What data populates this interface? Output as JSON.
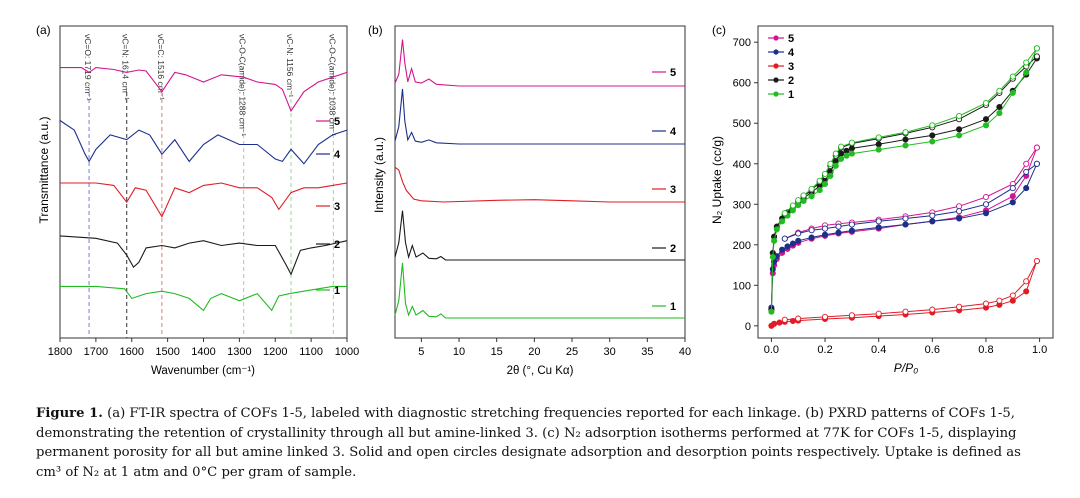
{
  "colors": {
    "c5": "#d4148f",
    "c4": "#1c2f8c",
    "c3": "#e01d27",
    "c2": "#1a1a1a",
    "c1": "#22bb22"
  },
  "panel_a": {
    "label": "(a)",
    "ylabel": "Transmittance (a.u.)",
    "xlabel": "Wavenumber (cm⁻¹)",
    "xticks": [
      "1800",
      "1700",
      "1600",
      "1500",
      "1400",
      "1300",
      "1200",
      "1100",
      "1000"
    ],
    "annotations": [
      {
        "text": "νC=O: 1719 cm⁻¹",
        "color": "#7b7be0"
      },
      {
        "text": "νC=N: 1614 cm⁻¹",
        "color": "#333333"
      },
      {
        "text": "νC=C: 1516 cm⁻¹",
        "color": "#e07a7a"
      },
      {
        "text": "νC-O-C(amide): 1288 cm⁻¹",
        "color": "#9bd89b"
      },
      {
        "text": "νC-N: 1156 cm⁻¹",
        "color": "#9bd89b"
      },
      {
        "text": "νC-O-C(amide): 1038 cm⁻¹",
        "color": "#9bd89b"
      }
    ],
    "legend": [
      "5",
      "4",
      "3",
      "2",
      "1"
    ]
  },
  "panel_b": {
    "label": "(b)",
    "ylabel": "Intensity (a.u.)",
    "xlabel": "2θ (°, Cu Kα)",
    "xticks": [
      "5",
      "10",
      "15",
      "20",
      "25",
      "30",
      "35",
      "40"
    ],
    "legend": [
      "5",
      "4",
      "3",
      "2",
      "1"
    ]
  },
  "panel_c": {
    "label": "(c)",
    "ylabel": "N₂ Uptake (cc/g)",
    "xlabel": "P/P₀",
    "xticks": [
      "0.0",
      "0.2",
      "0.4",
      "0.6",
      "0.8",
      "1.0"
    ],
    "yticks": [
      "0",
      "100",
      "200",
      "300",
      "400",
      "500",
      "600",
      "700"
    ],
    "legend": [
      "5",
      "4",
      "3",
      "2",
      "1"
    ]
  },
  "chart_data": [
    {
      "type": "line",
      "title": "",
      "xlabel": "Wavenumber (cm⁻¹)",
      "ylabel": "Transmittance (a.u.)",
      "xlim": [
        1800,
        1000
      ],
      "grid": false,
      "legend_position": "right",
      "annotations_cm": [
        1719,
        1614,
        1516,
        1288,
        1156,
        1038
      ],
      "series": [
        {
          "name": "5",
          "x": [
            1800,
            1740,
            1719,
            1700,
            1650,
            1614,
            1580,
            1560,
            1516,
            1480,
            1450,
            1400,
            1350,
            1288,
            1250,
            1200,
            1180,
            1156,
            1120,
            1080,
            1040,
            1000
          ],
          "y": [
            5.0,
            5.0,
            4.9,
            5.0,
            4.96,
            4.9,
            4.95,
            4.93,
            4.5,
            4.9,
            4.85,
            4.7,
            4.85,
            4.8,
            4.7,
            4.65,
            4.55,
            4.1,
            4.5,
            4.7,
            4.8,
            4.9
          ]
        },
        {
          "name": "4",
          "x": [
            1800,
            1760,
            1730,
            1719,
            1700,
            1660,
            1614,
            1580,
            1550,
            1516,
            1480,
            1440,
            1400,
            1360,
            1300,
            1250,
            1200,
            1180,
            1156,
            1120,
            1080,
            1040,
            1000
          ],
          "y": [
            3.9,
            3.7,
            3.2,
            3.05,
            3.3,
            3.6,
            3.5,
            3.7,
            3.6,
            3.2,
            3.5,
            3.05,
            3.4,
            3.6,
            3.4,
            3.4,
            3.1,
            3.05,
            3.3,
            3.0,
            3.4,
            3.6,
            3.7
          ]
        },
        {
          "name": "3",
          "x": [
            1800,
            1700,
            1650,
            1614,
            1590,
            1560,
            1516,
            1480,
            1440,
            1400,
            1350,
            1300,
            1250,
            1210,
            1190,
            1156,
            1120,
            1080,
            1040,
            1000
          ],
          "y": [
            2.6,
            2.6,
            2.55,
            2.2,
            2.5,
            2.45,
            1.9,
            2.5,
            2.4,
            2.55,
            2.6,
            2.5,
            2.5,
            2.3,
            2.05,
            2.4,
            2.5,
            2.5,
            2.55,
            2.6
          ]
        },
        {
          "name": "2",
          "x": [
            1800,
            1700,
            1640,
            1614,
            1595,
            1580,
            1560,
            1516,
            1480,
            1440,
            1400,
            1350,
            1300,
            1250,
            1200,
            1170,
            1156,
            1130,
            1100,
            1060,
            1000
          ],
          "y": [
            1.5,
            1.45,
            1.35,
            1.1,
            0.85,
            0.95,
            1.25,
            1.3,
            1.25,
            1.35,
            1.4,
            1.3,
            1.35,
            1.3,
            1.3,
            0.9,
            0.7,
            1.2,
            1.25,
            1.3,
            1.4
          ]
        },
        {
          "name": "1",
          "x": [
            1800,
            1700,
            1620,
            1600,
            1560,
            1516,
            1480,
            1440,
            1400,
            1380,
            1350,
            1300,
            1250,
            1210,
            1190,
            1160,
            1120,
            1080,
            1040,
            1000
          ],
          "y": [
            0.45,
            0.45,
            0.4,
            0.2,
            0.3,
            0.35,
            0.3,
            0.2,
            -0.05,
            0.2,
            0.3,
            0.15,
            0.3,
            -0.05,
            0.25,
            0.3,
            0.35,
            0.4,
            0.45,
            0.45
          ]
        }
      ]
    },
    {
      "type": "line",
      "title": "",
      "xlabel": "2θ (°, Cu Kα)",
      "ylabel": "Intensity (a.u.)",
      "xlim": [
        1.5,
        40
      ],
      "grid": false,
      "legend_position": "right",
      "series": [
        {
          "name": "5",
          "x": [
            1.5,
            2.0,
            2.5,
            2.8,
            3.2,
            3.7,
            4.2,
            5.0,
            6.0,
            7.0,
            10,
            40
          ],
          "y": [
            4.05,
            4.2,
            4.8,
            4.4,
            4.07,
            4.3,
            4.07,
            4.05,
            4.12,
            4.03,
            4.0,
            4.0
          ]
        },
        {
          "name": "4",
          "x": [
            1.5,
            2.0,
            2.5,
            2.8,
            3.2,
            3.7,
            4.2,
            5.0,
            6.0,
            7.0,
            10,
            40
          ],
          "y": [
            3.05,
            3.3,
            3.95,
            3.4,
            3.07,
            3.2,
            3.05,
            3.03,
            3.07,
            3.02,
            3.0,
            3.0
          ]
        },
        {
          "name": "3",
          "x": [
            1.5,
            2.0,
            2.5,
            3.0,
            4.0,
            5.0,
            8,
            15,
            20,
            25,
            30,
            40
          ],
          "y": [
            2.6,
            2.55,
            2.35,
            2.2,
            2.05,
            2.02,
            2.0,
            2.03,
            2.04,
            2.02,
            2.0,
            2.0
          ]
        },
        {
          "name": "2",
          "x": [
            1.5,
            2.0,
            2.5,
            2.9,
            3.3,
            3.8,
            4.3,
            5.2,
            6.0,
            7.0,
            7.6,
            8.2,
            10,
            40
          ],
          "y": [
            1.05,
            1.3,
            1.85,
            1.3,
            1.05,
            1.25,
            1.05,
            1.12,
            1.03,
            1.02,
            1.06,
            1.0,
            1.0,
            1.0
          ]
        },
        {
          "name": "1",
          "x": [
            1.5,
            2.0,
            2.5,
            2.9,
            3.3,
            3.8,
            4.3,
            5.2,
            6.0,
            7.0,
            7.6,
            8.2,
            10,
            40
          ],
          "y": [
            0.05,
            0.3,
            0.95,
            0.25,
            0.05,
            0.2,
            0.05,
            0.13,
            0.03,
            0.02,
            0.07,
            0.0,
            0.0,
            0.0
          ]
        }
      ]
    },
    {
      "type": "scatter",
      "title": "",
      "xlabel": "P/P₀",
      "ylabel": "N₂ Uptake (cc/g)",
      "xlim": [
        -0.05,
        1.05
      ],
      "ylim": [
        -30,
        740
      ],
      "grid": false,
      "legend_position": "top-left",
      "marker_note": "solid = adsorption, open = desorption",
      "series": [
        {
          "name": "5",
          "adsorption": {
            "x": [
              0.0,
              0.005,
              0.01,
              0.02,
              0.04,
              0.06,
              0.08,
              0.1,
              0.15,
              0.2,
              0.25,
              0.3,
              0.4,
              0.5,
              0.6,
              0.7,
              0.8,
              0.9,
              0.95,
              0.99
            ],
            "y": [
              40,
              130,
              150,
              165,
              180,
              190,
              198,
              205,
              215,
              222,
              228,
              232,
              240,
              250,
              258,
              268,
              285,
              320,
              370,
              440
            ]
          },
          "desorption": {
            "x": [
              0.99,
              0.95,
              0.9,
              0.8,
              0.7,
              0.6,
              0.5,
              0.4,
              0.3,
              0.25,
              0.2,
              0.15,
              0.1,
              0.05
            ],
            "y": [
              440,
              400,
              350,
              318,
              295,
              280,
              270,
              262,
              255,
              252,
              248,
              240,
              230,
              215
            ]
          }
        },
        {
          "name": "4",
          "adsorption": {
            "x": [
              0.0,
              0.005,
              0.01,
              0.02,
              0.04,
              0.06,
              0.08,
              0.1,
              0.15,
              0.2,
              0.25,
              0.3,
              0.4,
              0.5,
              0.6,
              0.7,
              0.8,
              0.9,
              0.95,
              0.99
            ],
            "y": [
              45,
              140,
              158,
              172,
              188,
              196,
              203,
              210,
              218,
              225,
              230,
              235,
              243,
              250,
              258,
              265,
              278,
              305,
              340,
              400
            ]
          },
          "desorption": {
            "x": [
              0.99,
              0.95,
              0.9,
              0.8,
              0.7,
              0.6,
              0.5,
              0.4,
              0.3,
              0.25,
              0.2,
              0.15,
              0.1,
              0.05
            ],
            "y": [
              400,
              380,
              340,
              300,
              283,
              272,
              265,
              258,
              250,
              245,
              240,
              236,
              228,
              215
            ]
          }
        },
        {
          "name": "3",
          "adsorption": {
            "x": [
              0.0,
              0.01,
              0.03,
              0.05,
              0.08,
              0.1,
              0.2,
              0.3,
              0.4,
              0.5,
              0.6,
              0.7,
              0.8,
              0.85,
              0.9,
              0.95,
              0.99
            ],
            "y": [
              0,
              5,
              8,
              10,
              12,
              13,
              17,
              20,
              24,
              28,
              33,
              38,
              45,
              52,
              62,
              85,
              160
            ]
          },
          "desorption": {
            "x": [
              0.99,
              0.95,
              0.9,
              0.85,
              0.8,
              0.7,
              0.6,
              0.5,
              0.4,
              0.3,
              0.2,
              0.1,
              0.05
            ],
            "y": [
              160,
              110,
              75,
              62,
              55,
              47,
              40,
              35,
              30,
              26,
              22,
              18,
              15
            ]
          }
        },
        {
          "name": "2",
          "adsorption": {
            "x": [
              0.0,
              0.005,
              0.01,
              0.02,
              0.04,
              0.06,
              0.08,
              0.1,
              0.12,
              0.15,
              0.18,
              0.2,
              0.22,
              0.24,
              0.26,
              0.28,
              0.3,
              0.4,
              0.5,
              0.6,
              0.7,
              0.8,
              0.85,
              0.9,
              0.95,
              0.99
            ],
            "y": [
              40,
              180,
              220,
              245,
              265,
              280,
              292,
              305,
              315,
              330,
              345,
              360,
              380,
              405,
              425,
              432,
              438,
              448,
              460,
              470,
              485,
              510,
              540,
              580,
              620,
              660
            ]
          },
          "desorption": {
            "x": [
              0.99,
              0.95,
              0.9,
              0.85,
              0.8,
              0.7,
              0.6,
              0.5,
              0.4,
              0.3,
              0.26,
              0.24,
              0.22,
              0.2,
              0.18,
              0.15,
              0.12,
              0.1,
              0.08,
              0.05
            ],
            "y": [
              665,
              640,
              610,
              575,
              545,
              510,
              490,
              475,
              462,
              450,
              440,
              420,
              395,
              370,
              355,
              335,
              320,
              308,
              295,
              275
            ]
          }
        },
        {
          "name": "1",
          "adsorption": {
            "x": [
              0.0,
              0.005,
              0.01,
              0.02,
              0.04,
              0.06,
              0.08,
              0.1,
              0.12,
              0.15,
              0.18,
              0.2,
              0.22,
              0.24,
              0.26,
              0.28,
              0.3,
              0.4,
              0.5,
              0.6,
              0.7,
              0.8,
              0.85,
              0.9,
              0.95,
              0.99
            ],
            "y": [
              35,
              170,
              210,
              238,
              258,
              272,
              285,
              298,
              308,
              320,
              335,
              350,
              370,
              395,
              412,
              420,
              425,
              435,
              445,
              455,
              470,
              495,
              525,
              575,
              625,
              685
            ]
          },
          "desorption": {
            "x": [
              0.99,
              0.95,
              0.9,
              0.85,
              0.8,
              0.7,
              0.6,
              0.5,
              0.4,
              0.3,
              0.26,
              0.24,
              0.22,
              0.2,
              0.18,
              0.15,
              0.12,
              0.1,
              0.08,
              0.05
            ],
            "y": [
              685,
              650,
              615,
              580,
              550,
              518,
              495,
              478,
              465,
              452,
              442,
              425,
              400,
              375,
              358,
              338,
              322,
              310,
              297,
              278
            ]
          }
        }
      ]
    }
  ],
  "caption": {
    "title": "Figure 1.",
    "text": " (a) FT-IR spectra of COFs 1-5, labeled with diagnostic stretching frequencies reported for each linkage. (b) PXRD patterns of COFs 1-5, demonstrating the retention of crystallinity through all but amine-linked 3. (c) N₂ adsorption isotherms performed at 77K for COFs 1-5, displaying permanent porosity for all but amine linked 3. Solid and open circles designate adsorption and desorption points respectively. Uptake is defined as cm³ of N₂ at 1 atm and 0°C per gram of sample."
  }
}
